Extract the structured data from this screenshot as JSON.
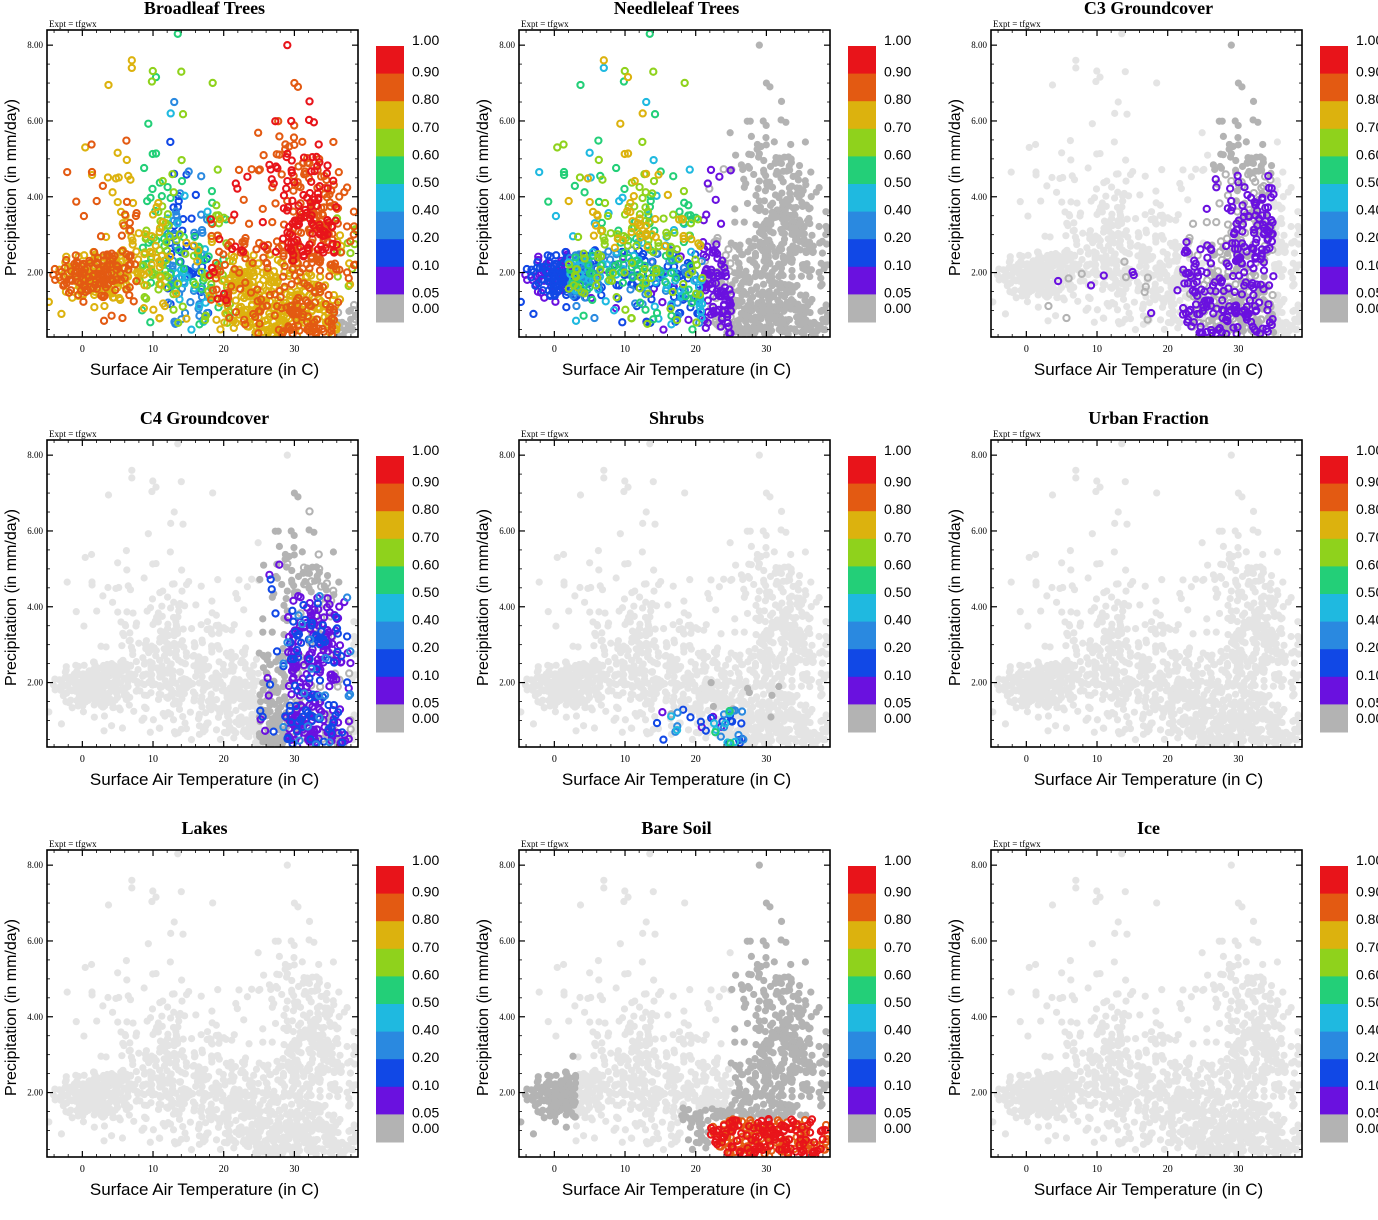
{
  "chart_data": {
    "type": "scatter",
    "figure": "Precipitation vs. surface air temperature, colored by land cover fraction",
    "experiment_label": "Expt = tfgwx",
    "xlabel": "Surface Air Temperature (in C)",
    "ylabel": "Precipitation (in mm/day)",
    "xlim": [
      -5,
      39
    ],
    "ylim": [
      0.3,
      8.4
    ],
    "xticks": [
      0,
      10,
      20,
      30
    ],
    "yticks": [
      2.0,
      4.0,
      6.0,
      8.0
    ],
    "ytick_labels": [
      "2.00",
      "4.00",
      "6.00",
      "8.00"
    ],
    "colorbar": {
      "labels": [
        "1.00",
        "0.90",
        "0.80",
        "0.70",
        "0.60",
        "0.50",
        "0.40",
        "0.20",
        "0.10",
        "0.05",
        "0.00"
      ],
      "colors": [
        "#e8141a",
        "#e35a12",
        "#dcb20e",
        "#8fd21c",
        "#23cf78",
        "#1fb9e0",
        "#2a89e0",
        "#1148e6",
        "#6a11df",
        "#b3b3b3"
      ]
    },
    "background_color": "#e4e4e4",
    "panels": [
      {
        "title": "Broadleaf Trees",
        "colored_region": "cool-to-hot, low-to-mid precipitation; highest fractions (0.80–1.00) at < 8 C and 22–37 C, mid fractions (0.20–0.70) at 8–20 C",
        "fraction_range": [
          0.0,
          1.0
        ]
      },
      {
        "title": "Needleleaf Trees",
        "colored_region": "-5 to 25 C, 0.8 to 7.5 mm/day; fractions 0.05–0.80, high fractions (0.70–0.80) at 5–15 C, 2.5–6 mm/day",
        "fraction_range": [
          0.05,
          0.8
        ]
      },
      {
        "title": "C3 Groundcover",
        "colored_region": "3 to 35 C, 0.6 to 4.5 mm/day; fractions mostly 0.05–0.10",
        "fraction_range": [
          0.05,
          0.1
        ]
      },
      {
        "title": "C4 Groundcover",
        "colored_region": "26 to 38 C, 0.4 to 4.5 mm/day; fractions 0.05–0.40, core 0.05–0.20 at 30–36 C",
        "fraction_range": [
          0.05,
          0.4
        ]
      },
      {
        "title": "Shrubs",
        "colored_region": "14 to 27 C, 0.6 to 1.3 mm/day; fractions 0.05–0.70",
        "fraction_range": [
          0.05,
          0.7
        ]
      },
      {
        "title": "Urban Fraction",
        "colored_region": "none (all 0.00)",
        "fraction_range": [
          0.0,
          0.0
        ]
      },
      {
        "title": "Lakes",
        "colored_region": "none (all 0.00)",
        "fraction_range": [
          0.0,
          0.0
        ]
      },
      {
        "title": "Bare Soil",
        "colored_region": "22 to 39 C, 0.3 to 1.3 mm/day; fractions mostly 0.90–1.00",
        "fraction_range": [
          0.0,
          1.0
        ]
      },
      {
        "title": "Ice",
        "colored_region": "none (all 0.00)",
        "fraction_range": [
          0.0,
          0.0
        ]
      }
    ]
  }
}
